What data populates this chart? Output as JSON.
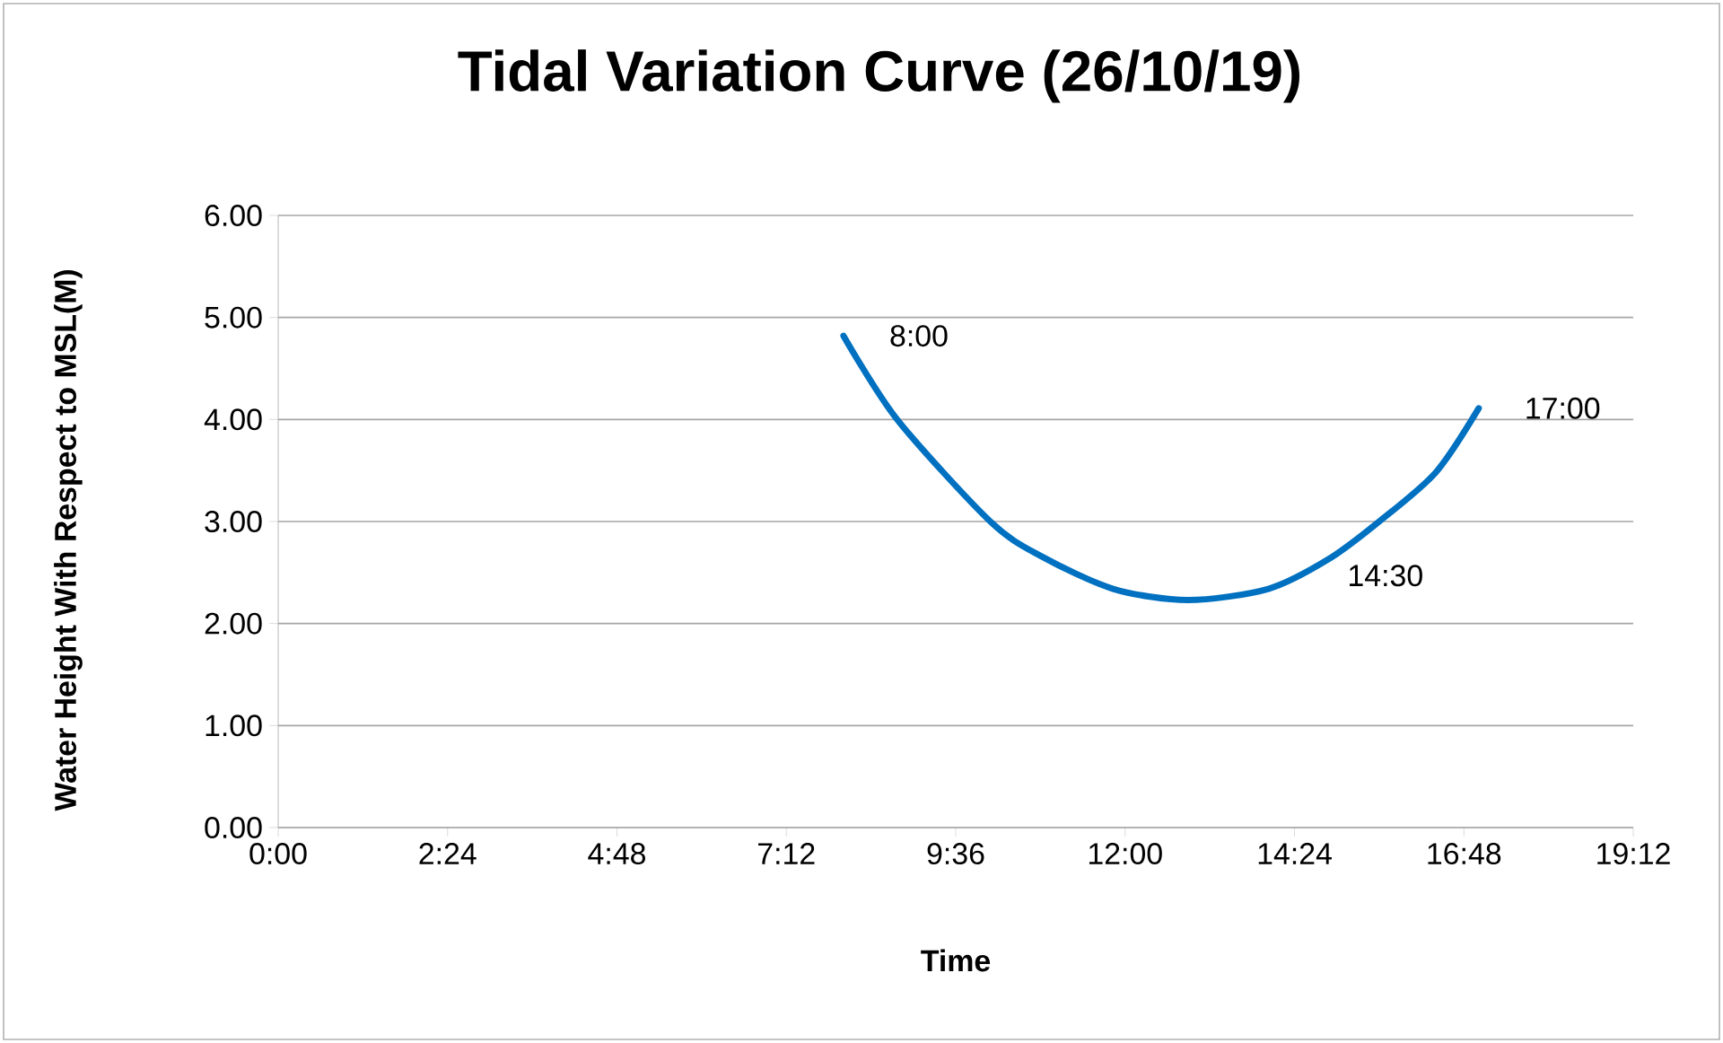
{
  "chart_data": {
    "type": "line",
    "title": "Tidal Variation Curve (26/10/19)",
    "xlabel": "Time",
    "ylabel": "Water Height With Respect to MSL(M)",
    "series": [
      {
        "color": "#0070c0",
        "x": [
          8.01,
          8.77,
          10.09,
          10.81,
          11.83,
          12.89,
          14.03,
          14.88,
          15.6,
          16.4,
          17.01
        ],
        "values": [
          4.82,
          4.0,
          3.0,
          2.66,
          2.34,
          2.23,
          2.34,
          2.63,
          3.0,
          3.48,
          4.11
        ]
      }
    ],
    "xlim": [
      0,
      19.2
    ],
    "ylim": [
      0,
      6
    ],
    "xticks": [
      {
        "value": 0,
        "label": "0:00"
      },
      {
        "value": 2.4,
        "label": "2:24"
      },
      {
        "value": 4.8,
        "label": "4:48"
      },
      {
        "value": 7.2,
        "label": "7:12"
      },
      {
        "value": 9.6,
        "label": "9:36"
      },
      {
        "value": 12,
        "label": "12:00"
      },
      {
        "value": 14.4,
        "label": "14:24"
      },
      {
        "value": 16.8,
        "label": "16:48"
      },
      {
        "value": 19.2,
        "label": "19:12"
      }
    ],
    "yticks": [
      {
        "value": 0,
        "label": "0.00"
      },
      {
        "value": 1,
        "label": "1.00"
      },
      {
        "value": 2,
        "label": "2.00"
      },
      {
        "value": 3,
        "label": "3.00"
      },
      {
        "value": 4,
        "label": "4.00"
      },
      {
        "value": 5,
        "label": "5.00"
      },
      {
        "value": 6,
        "label": "6.00"
      }
    ],
    "grid": "y",
    "marker": "none",
    "line_style": "solid",
    "annotations": [
      {
        "text": "8:00",
        "x": 8.01,
        "y": 4.82
      },
      {
        "text": "14:30",
        "x": 14.5,
        "y": 2.47
      },
      {
        "text": "17:00",
        "x": 17.01,
        "y": 4.11
      }
    ]
  }
}
